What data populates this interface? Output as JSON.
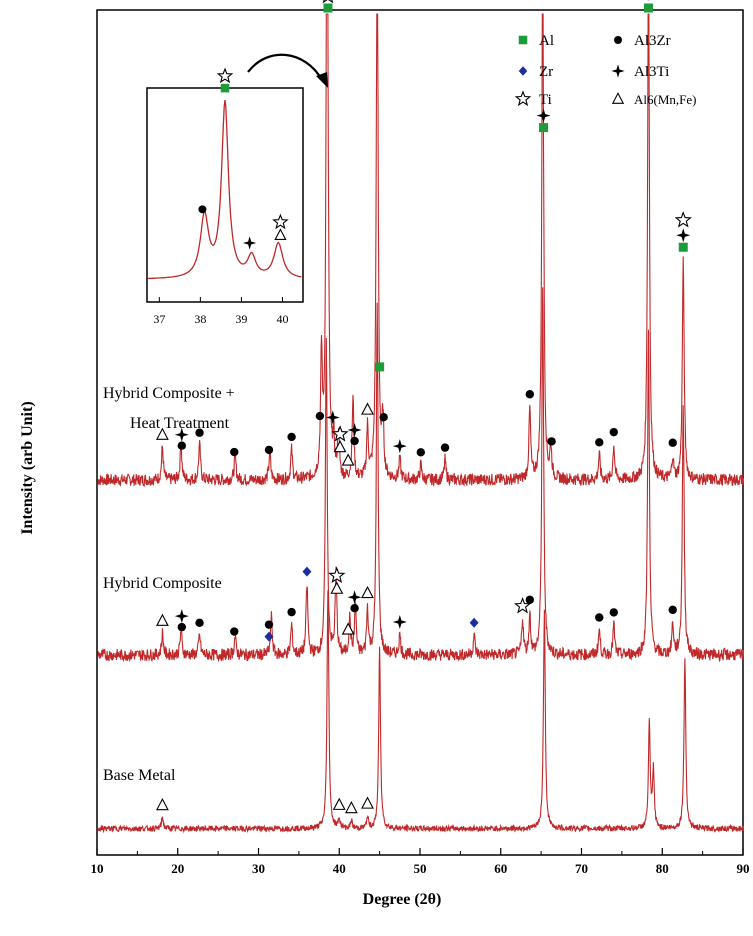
{
  "chart_data": {
    "type": "line",
    "xlabel": "Degree (2θ)",
    "ylabel": "Intensity (arb Unit)",
    "xlim": [
      10,
      90
    ],
    "xticks": [
      "10",
      "20",
      "30",
      "40",
      "50",
      "60",
      "70",
      "80",
      "90"
    ],
    "legend": {
      "position": "top-right",
      "entries": [
        {
          "name": "Al",
          "marker": "green-square",
          "color": "#1e9c3a"
        },
        {
          "name": "Al3Zr",
          "marker": "black-circle",
          "color": "#000000"
        },
        {
          "name": "Zr",
          "marker": "blue-diamond",
          "color": "#1a2f9c"
        },
        {
          "name": "Al3Ti",
          "marker": "black-cross",
          "color": "#000000"
        },
        {
          "name": "Ti",
          "marker": "open-star",
          "color": "#000000"
        },
        {
          "name": "Al6(Mn,Fe)",
          "marker": "open-triangle",
          "color": "#000000"
        }
      ]
    },
    "line_color": "#c0282a",
    "series": [
      {
        "name": "Hybrid Composite + Heat Treatment",
        "label_lines": [
          "Hybrid Composite +",
          "Heat Treatment"
        ],
        "baseline": 0.05,
        "noise": 0.006,
        "peaks": [
          {
            "x": 18.1,
            "h": 0.033
          },
          {
            "x": 20.4,
            "h": 0.035
          },
          {
            "x": 22.7,
            "h": 0.035
          },
          {
            "x": 27.1,
            "h": 0.025
          },
          {
            "x": 31.4,
            "h": 0.028
          },
          {
            "x": 34.1,
            "h": 0.03
          },
          {
            "x": 37.8,
            "h": 0.12
          },
          {
            "x": 38.5,
            "h": 0.76
          },
          {
            "x": 39.3,
            "h": 0.035
          },
          {
            "x": 39.9,
            "h": 0.045
          },
          {
            "x": 41.7,
            "h": 0.08
          },
          {
            "x": 43.5,
            "h": 0.05
          },
          {
            "x": 44.7,
            "h": 0.6
          },
          {
            "x": 45.4,
            "h": 0.055
          },
          {
            "x": 47.5,
            "h": 0.02
          },
          {
            "x": 50.1,
            "h": 0.015
          },
          {
            "x": 53.1,
            "h": 0.02
          },
          {
            "x": 63.6,
            "h": 0.07
          },
          {
            "x": 65.2,
            "h": 0.54
          },
          {
            "x": 66.2,
            "h": 0.03
          },
          {
            "x": 72.2,
            "h": 0.025
          },
          {
            "x": 74.0,
            "h": 0.035
          },
          {
            "x": 78.3,
            "h": 0.54
          },
          {
            "x": 81.3,
            "h": 0.022
          },
          {
            "x": 82.6,
            "h": 0.22
          }
        ]
      },
      {
        "name": "Hybrid Composite",
        "label_lines": [
          "Hybrid Composite"
        ],
        "baseline": 0.045,
        "noise": 0.006,
        "peaks": [
          {
            "x": 18.1,
            "h": 0.022
          },
          {
            "x": 20.4,
            "h": 0.025
          },
          {
            "x": 22.7,
            "h": 0.02
          },
          {
            "x": 27.1,
            "h": 0.018
          },
          {
            "x": 31.6,
            "h": 0.038
          },
          {
            "x": 34.1,
            "h": 0.03
          },
          {
            "x": 36.0,
            "h": 0.07
          },
          {
            "x": 38.4,
            "h": 0.32
          },
          {
            "x": 39.6,
            "h": 0.08
          },
          {
            "x": 41.3,
            "h": 0.035
          },
          {
            "x": 42.0,
            "h": 0.05
          },
          {
            "x": 43.5,
            "h": 0.045
          },
          {
            "x": 44.7,
            "h": 0.35
          },
          {
            "x": 47.5,
            "h": 0.02
          },
          {
            "x": 56.7,
            "h": 0.02
          },
          {
            "x": 62.7,
            "h": 0.035
          },
          {
            "x": 63.6,
            "h": 0.04
          },
          {
            "x": 65.2,
            "h": 0.37
          },
          {
            "x": 72.2,
            "h": 0.025
          },
          {
            "x": 74.0,
            "h": 0.03
          },
          {
            "x": 78.3,
            "h": 0.33
          },
          {
            "x": 81.3,
            "h": 0.03
          },
          {
            "x": 82.6,
            "h": 0.25
          }
        ]
      },
      {
        "name": "Base Metal",
        "label_lines": [
          "Base Metal"
        ],
        "baseline": 0.012,
        "noise": 0.003,
        "peaks": [
          {
            "x": 18.1,
            "h": 0.012
          },
          {
            "x": 38.6,
            "h": 0.25
          },
          {
            "x": 40.0,
            "h": 0.01
          },
          {
            "x": 41.5,
            "h": 0.008
          },
          {
            "x": 43.5,
            "h": 0.012
          },
          {
            "x": 45.0,
            "h": 0.19
          },
          {
            "x": 65.4,
            "h": 0.23
          },
          {
            "x": 78.4,
            "h": 0.11
          },
          {
            "x": 78.9,
            "h": 0.06
          },
          {
            "x": 82.8,
            "h": 0.18
          }
        ]
      }
    ],
    "phase_markers": [
      {
        "x": 18.1,
        "series": 0,
        "stack": [
          "triangle"
        ]
      },
      {
        "x": 20.5,
        "series": 0,
        "stack": [
          "circle",
          "cross"
        ]
      },
      {
        "x": 22.7,
        "series": 0,
        "stack": [
          "circle"
        ]
      },
      {
        "x": 27.0,
        "series": 0,
        "stack": [
          "circle"
        ]
      },
      {
        "x": 31.3,
        "series": 0,
        "stack": [
          "circle"
        ]
      },
      {
        "x": 34.1,
        "series": 0,
        "stack": [
          "circle"
        ]
      },
      {
        "x": 37.6,
        "series": 0,
        "stack": [
          "circle"
        ]
      },
      {
        "x": 38.6,
        "series": 0,
        "stack": [
          "square",
          "star"
        ]
      },
      {
        "x": 39.2,
        "series": 0,
        "stack": [
          "cross"
        ]
      },
      {
        "x": 40.1,
        "series": 0,
        "stack": [
          "triangle",
          "star"
        ]
      },
      {
        "x": 41.1,
        "series": 0,
        "stack": [
          "triangle"
        ]
      },
      {
        "x": 41.9,
        "series": 0,
        "stack": [
          "circle",
          "cross"
        ]
      },
      {
        "x": 43.5,
        "series": 0,
        "stack": [
          "triangle"
        ]
      },
      {
        "x": 45.0,
        "series": 0,
        "stack": [
          "square"
        ]
      },
      {
        "x": 45.5,
        "series": 0,
        "stack": [
          "circle"
        ]
      },
      {
        "x": 47.5,
        "series": 0,
        "stack": [
          "cross"
        ]
      },
      {
        "x": 50.1,
        "series": 0,
        "stack": [
          "circle"
        ]
      },
      {
        "x": 53.1,
        "series": 0,
        "stack": [
          "circle"
        ]
      },
      {
        "x": 63.6,
        "series": 0,
        "stack": [
          "circle"
        ]
      },
      {
        "x": 65.3,
        "series": 0,
        "stack": [
          "square",
          "cross"
        ]
      },
      {
        "x": 66.3,
        "series": 0,
        "stack": [
          "circle"
        ]
      },
      {
        "x": 72.2,
        "series": 0,
        "stack": [
          "circle"
        ]
      },
      {
        "x": 74.0,
        "series": 0,
        "stack": [
          "circle"
        ]
      },
      {
        "x": 78.3,
        "series": 0,
        "stack": [
          "square",
          "circle"
        ]
      },
      {
        "x": 81.3,
        "series": 0,
        "stack": [
          "circle"
        ]
      },
      {
        "x": 82.6,
        "series": 0,
        "stack": [
          "square",
          "cross",
          "star"
        ]
      },
      {
        "x": 18.1,
        "series": 1,
        "stack": [
          "triangle"
        ]
      },
      {
        "x": 20.5,
        "series": 1,
        "stack": [
          "circle",
          "cross"
        ]
      },
      {
        "x": 22.7,
        "series": 1,
        "stack": [
          "circle"
        ]
      },
      {
        "x": 27.0,
        "series": 1,
        "stack": [
          "circle"
        ]
      },
      {
        "x": 31.3,
        "series": 1,
        "stack": [
          "diamond",
          "circle"
        ]
      },
      {
        "x": 34.1,
        "series": 1,
        "stack": [
          "circle"
        ]
      },
      {
        "x": 36.0,
        "series": 1,
        "stack": [
          "diamond"
        ]
      },
      {
        "x": 39.7,
        "series": 1,
        "stack": [
          "triangle",
          "star"
        ]
      },
      {
        "x": 41.1,
        "series": 1,
        "stack": [
          "triangle"
        ]
      },
      {
        "x": 41.9,
        "series": 1,
        "stack": [
          "circle",
          "cross"
        ]
      },
      {
        "x": 43.5,
        "series": 1,
        "stack": [
          "triangle"
        ]
      },
      {
        "x": 47.5,
        "series": 1,
        "stack": [
          "cross"
        ]
      },
      {
        "x": 56.7,
        "series": 1,
        "stack": [
          "diamond"
        ]
      },
      {
        "x": 62.7,
        "series": 1,
        "stack": [
          "star"
        ]
      },
      {
        "x": 63.6,
        "series": 1,
        "stack": [
          "circle"
        ]
      },
      {
        "x": 72.2,
        "series": 1,
        "stack": [
          "circle"
        ]
      },
      {
        "x": 74.0,
        "series": 1,
        "stack": [
          "circle"
        ]
      },
      {
        "x": 81.3,
        "series": 1,
        "stack": [
          "circle"
        ]
      },
      {
        "x": 18.1,
        "series": 2,
        "stack": [
          "triangle"
        ]
      },
      {
        "x": 40.0,
        "series": 2,
        "stack": [
          "triangle"
        ]
      },
      {
        "x": 41.5,
        "series": 2,
        "stack": [
          "triangle"
        ]
      },
      {
        "x": 43.5,
        "series": 2,
        "stack": [
          "triangle"
        ]
      }
    ],
    "inset": {
      "xlim": [
        36.7,
        40.5
      ],
      "xticks": [
        "37",
        "38",
        "39",
        "40"
      ],
      "peaks": [
        {
          "x": 38.1,
          "h": 0.35,
          "w": 0.12
        },
        {
          "x": 38.6,
          "h": 1.0,
          "w": 0.1
        },
        {
          "x": 39.25,
          "h": 0.12,
          "w": 0.12
        },
        {
          "x": 39.9,
          "h": 0.2,
          "w": 0.13
        }
      ],
      "markers": [
        {
          "x": 38.05,
          "stack": [
            "circle"
          ]
        },
        {
          "x": 38.6,
          "stack": [
            "square",
            "star"
          ]
        },
        {
          "x": 39.2,
          "stack": [
            "cross"
          ]
        },
        {
          "x": 39.95,
          "stack": [
            "triangle",
            "star"
          ]
        }
      ]
    }
  }
}
